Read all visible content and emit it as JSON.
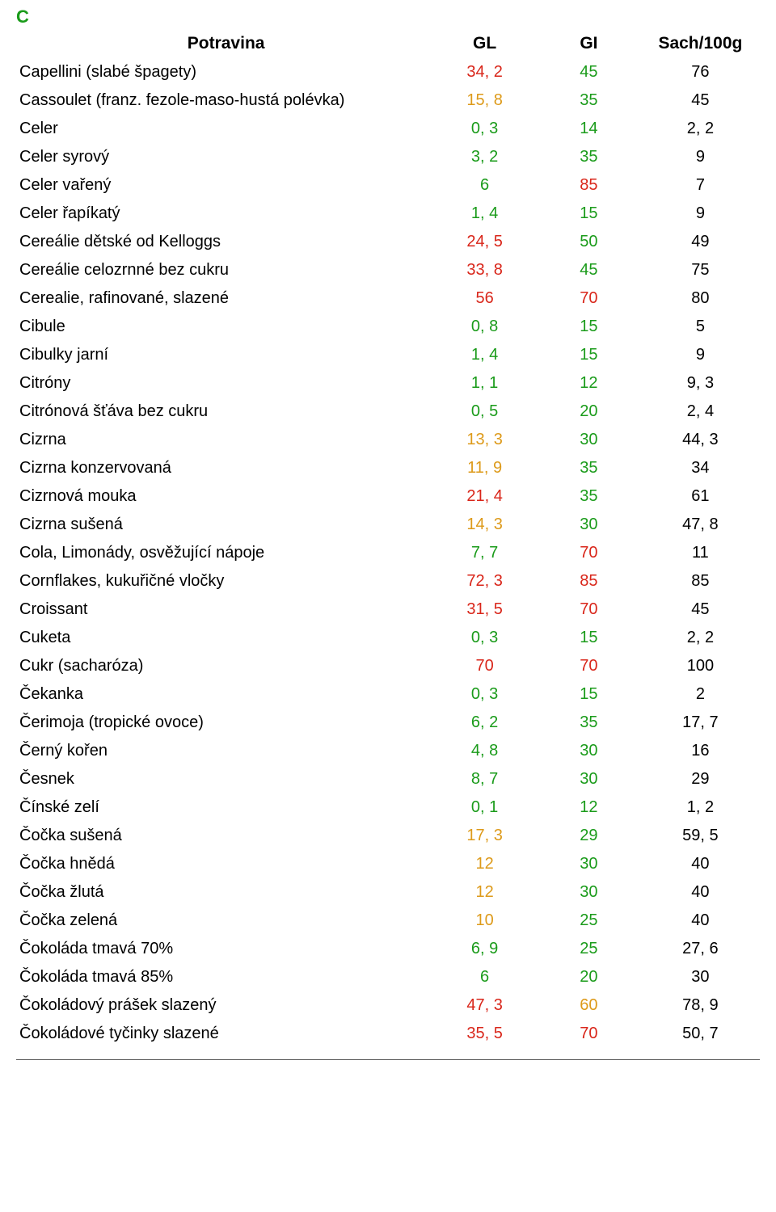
{
  "colors": {
    "green": "#1a9b1a",
    "red": "#d9261a",
    "orange": "#dd9a1a",
    "darkred": "#9a1a1a",
    "black": "#000000"
  },
  "section_letter": "C",
  "headers": {
    "name": "Potravina",
    "gl": "GL",
    "gi": "GI",
    "sach": "Sach/100g"
  },
  "rows": [
    {
      "name": "Capellini (slabé špagety)",
      "gl": "34, 2",
      "gl_c": "red",
      "gi": "45",
      "gi_c": "green",
      "sach": "76"
    },
    {
      "name": "Cassoulet (franz. fezole-maso-hustá polévka)",
      "gl": "15, 8",
      "gl_c": "orange",
      "gi": "35",
      "gi_c": "green",
      "sach": "45"
    },
    {
      "name": "Celer",
      "gl": "0, 3",
      "gl_c": "green",
      "gi": "14",
      "gi_c": "green",
      "sach": "2, 2"
    },
    {
      "name": "Celer syrový",
      "gl": "3, 2",
      "gl_c": "green",
      "gi": "35",
      "gi_c": "green",
      "sach": "9"
    },
    {
      "name": "Celer vařený",
      "gl": "6",
      "gl_c": "green",
      "gi": "85",
      "gi_c": "red",
      "sach": "7"
    },
    {
      "name": "Celer řapíkatý",
      "gl": "1, 4",
      "gl_c": "green",
      "gi": "15",
      "gi_c": "green",
      "sach": "9"
    },
    {
      "name": "Cereálie dětské od Kelloggs",
      "gl": "24, 5",
      "gl_c": "red",
      "gi": "50",
      "gi_c": "green",
      "sach": "49"
    },
    {
      "name": "Cereálie celozrnné bez cukru",
      "gl": "33, 8",
      "gl_c": "red",
      "gi": "45",
      "gi_c": "green",
      "sach": "75"
    },
    {
      "name": "Cerealie, rafinované, slazené",
      "gl": "56",
      "gl_c": "red",
      "gi": "70",
      "gi_c": "red",
      "sach": "80"
    },
    {
      "name": "Cibule",
      "gl": "0, 8",
      "gl_c": "green",
      "gi": "15",
      "gi_c": "green",
      "sach": "5"
    },
    {
      "name": "Cibulky jarní",
      "gl": "1, 4",
      "gl_c": "green",
      "gi": "15",
      "gi_c": "green",
      "sach": "9"
    },
    {
      "name": "Citróny",
      "gl": "1, 1",
      "gl_c": "green",
      "gi": "12",
      "gi_c": "green",
      "sach": "9, 3"
    },
    {
      "name": "Citrónová šťáva bez cukru",
      "gl": "0, 5",
      "gl_c": "green",
      "gi": "20",
      "gi_c": "green",
      "sach": "2, 4"
    },
    {
      "name": "Cizrna",
      "gl": "13, 3",
      "gl_c": "orange",
      "gi": "30",
      "gi_c": "green",
      "sach": "44, 3"
    },
    {
      "name": "Cizrna konzervovaná",
      "gl": "11, 9",
      "gl_c": "orange",
      "gi": "35",
      "gi_c": "green",
      "sach": "34"
    },
    {
      "name": "Cizrnová mouka",
      "gl": "21, 4",
      "gl_c": "red",
      "gi": "35",
      "gi_c": "green",
      "sach": "61"
    },
    {
      "name": "Cizrna sušená",
      "gl": "14, 3",
      "gl_c": "orange",
      "gi": "30",
      "gi_c": "green",
      "sach": "47, 8"
    },
    {
      "name": "Cola, Limonády, osvěžující nápoje",
      "gl": "7, 7",
      "gl_c": "green",
      "gi": "70",
      "gi_c": "red",
      "sach": "11"
    },
    {
      "name": "Cornflakes, kukuřičné vločky",
      "gl": "72, 3",
      "gl_c": "red",
      "gi": "85",
      "gi_c": "red",
      "sach": "85"
    },
    {
      "name": "Croissant",
      "gl": "31, 5",
      "gl_c": "red",
      "gi": "70",
      "gi_c": "red",
      "sach": "45"
    },
    {
      "name": "Cuketa",
      "gl": "0, 3",
      "gl_c": "green",
      "gi": "15",
      "gi_c": "green",
      "sach": "2, 2"
    },
    {
      "name": "Cukr (sacharóza)",
      "gl": "70",
      "gl_c": "red",
      "gi": "70",
      "gi_c": "red",
      "sach": "100"
    },
    {
      "name": "Čekanka",
      "gl": "0, 3",
      "gl_c": "green",
      "gi": "15",
      "gi_c": "green",
      "sach": "2"
    },
    {
      "name": "Čerimoja (tropické ovoce)",
      "gl": "6, 2",
      "gl_c": "green",
      "gi": "35",
      "gi_c": "green",
      "sach": "17, 7"
    },
    {
      "name": "Černý kořen",
      "gl": "4, 8",
      "gl_c": "green",
      "gi": "30",
      "gi_c": "green",
      "sach": "16"
    },
    {
      "name": "Česnek",
      "gl": "8, 7",
      "gl_c": "green",
      "gi": "30",
      "gi_c": "green",
      "sach": "29"
    },
    {
      "name": "Čínské zelí",
      "gl": "0, 1",
      "gl_c": "green",
      "gi": "12",
      "gi_c": "green",
      "sach": "1, 2"
    },
    {
      "name": "Čočka sušená",
      "gl": "17, 3",
      "gl_c": "orange",
      "gi": "29",
      "gi_c": "green",
      "sach": "59, 5"
    },
    {
      "name": "Čočka hnědá",
      "gl": "12",
      "gl_c": "orange",
      "gi": "30",
      "gi_c": "green",
      "sach": "40"
    },
    {
      "name": "Čočka žlutá",
      "gl": "12",
      "gl_c": "orange",
      "gi": "30",
      "gi_c": "green",
      "sach": "40"
    },
    {
      "name": "Čočka zelená",
      "gl": "10",
      "gl_c": "orange",
      "gi": "25",
      "gi_c": "green",
      "sach": "40"
    },
    {
      "name": "Čokoláda tmavá 70%",
      "gl": "6, 9",
      "gl_c": "green",
      "gi": "25",
      "gi_c": "green",
      "sach": "27, 6"
    },
    {
      "name": "Čokoláda tmavá 85%",
      "gl": "6",
      "gl_c": "green",
      "gi": "20",
      "gi_c": "green",
      "sach": "30"
    },
    {
      "name": "Čokoládový prášek slazený",
      "gl": "47, 3",
      "gl_c": "red",
      "gi": "60",
      "gi_c": "orange",
      "sach": "78, 9"
    },
    {
      "name": "Čokoládové tyčinky slazené",
      "gl": "35, 5",
      "gl_c": "red",
      "gi": "70",
      "gi_c": "red",
      "sach": "50, 7"
    }
  ]
}
